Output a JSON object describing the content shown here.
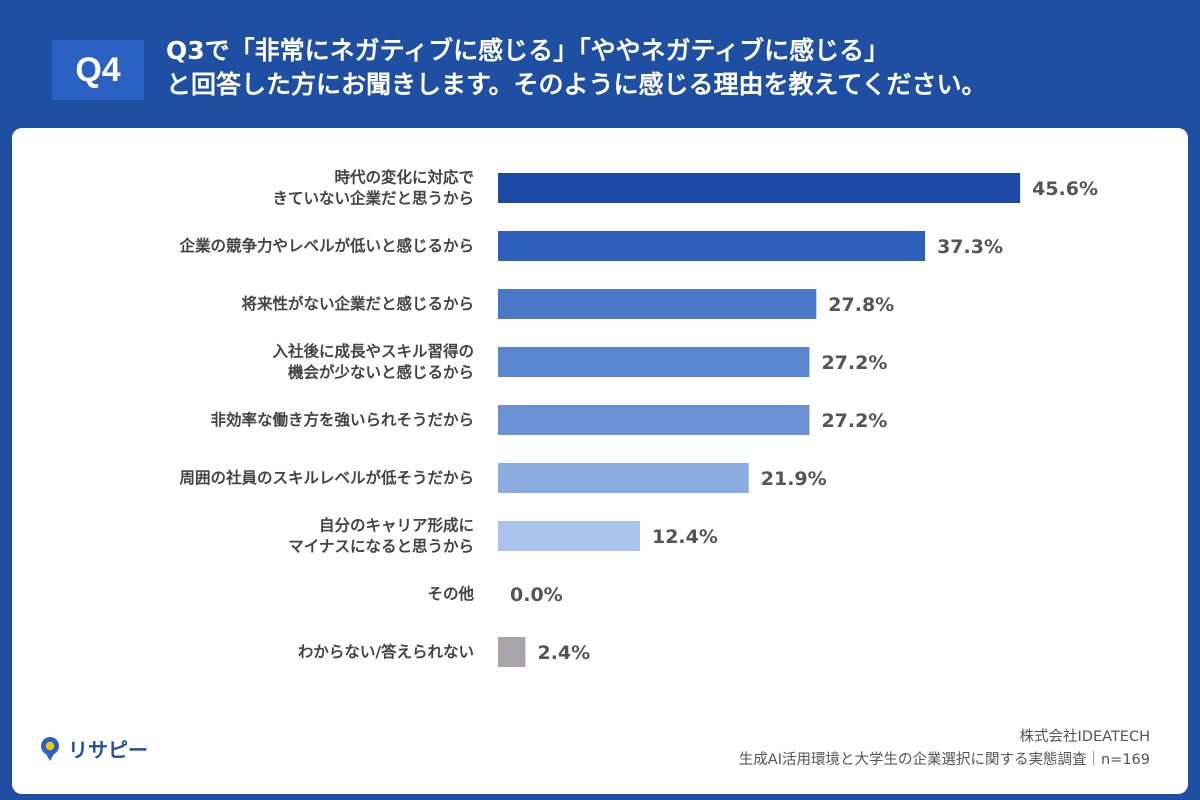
{
  "header": {
    "badge": "Q4",
    "title_line1": "Q3で「非常にネガティブに感じる」「ややネガティブに感じる」",
    "title_line2": "と回答した方にお聞きします。そのように感じる理由を教えてください。"
  },
  "chart_data": {
    "type": "bar",
    "orientation": "horizontal",
    "value_unit": "%",
    "xlim": [
      0,
      50
    ],
    "grid": false,
    "categories": [
      [
        "時代の変化に対応で",
        "きていない企業だと思うから"
      ],
      [
        "企業の競争力やレベルが低いと感じるから"
      ],
      [
        "将来性がない企業だと感じるから"
      ],
      [
        "入社後に成長やスキル習得の",
        "機会が少ないと感じるから"
      ],
      [
        "非効率な働き方を強いられそうだから"
      ],
      [
        "周囲の社員のスキルレベルが低そうだから"
      ],
      [
        "自分のキャリア形成に",
        "マイナスになると思うから"
      ],
      [
        "その他"
      ],
      [
        "わからない/答えられない"
      ]
    ],
    "values": [
      45.6,
      37.3,
      27.8,
      27.2,
      27.2,
      21.9,
      12.4,
      0.0,
      2.4
    ],
    "value_labels": [
      "45.6%",
      "37.3%",
      "27.8%",
      "27.2%",
      "27.2%",
      "21.9%",
      "12.4%",
      "0.0%",
      "2.4%"
    ],
    "colors": [
      "#1d4aa6",
      "#2f5fbd",
      "#4a78c9",
      "#5a86cf",
      "#6a92d4",
      "#8aabe0",
      "#a9c3ea",
      "#a9c3ea",
      "#a8a6ab"
    ]
  },
  "logo": {
    "name": "リサピー",
    "icon": "pin-icon"
  },
  "footer": {
    "company": "株式会社IDEATECH",
    "survey": "生成AI活用環境と大学生の企業選択に関する実態調査｜n=169"
  },
  "colors": {
    "background": "#1f4fa3",
    "badge": "#2b61c2",
    "panel": "#ffffff"
  }
}
